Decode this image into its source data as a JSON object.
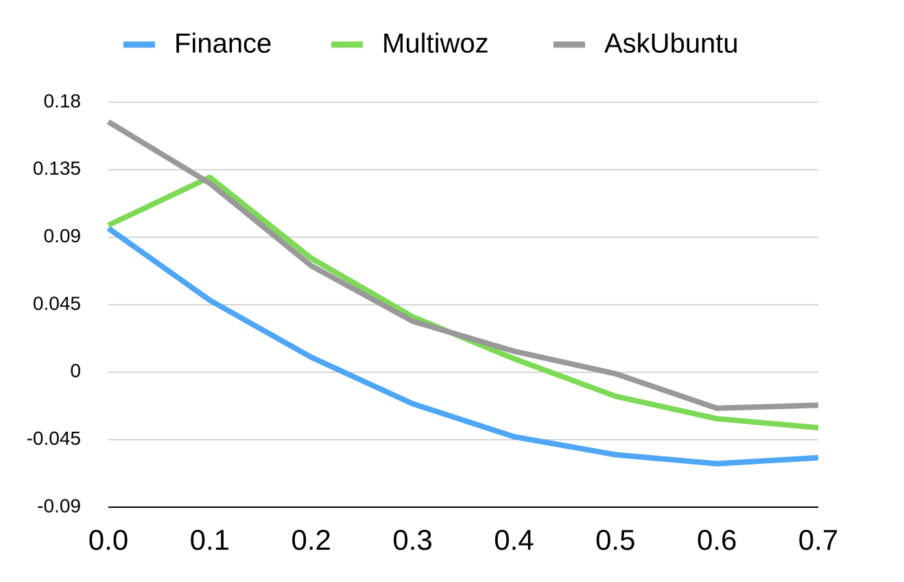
{
  "chart_data": {
    "type": "line",
    "x": [
      0,
      0.1,
      0.2,
      0.3,
      0.4,
      0.5,
      0.6,
      0.7
    ],
    "series": [
      {
        "name": "Finance",
        "color": "#4ea6f5",
        "values": [
          0.096,
          0.048,
          0.01,
          -0.021,
          -0.043,
          -0.055,
          -0.061,
          -0.057
        ]
      },
      {
        "name": "Multiwoz",
        "color": "#7ed957",
        "values": [
          0.098,
          0.13,
          0.076,
          0.037,
          0.009,
          -0.016,
          -0.031,
          -0.037
        ]
      },
      {
        "name": "AskUbuntu",
        "color": "#999999",
        "values": [
          0.167,
          0.126,
          0.071,
          0.034,
          0.014,
          -0.001,
          -0.024,
          -0.022
        ]
      }
    ],
    "xlim": [
      0,
      0.7
    ],
    "xticks": [
      {
        "value": 0,
        "label": "0.0"
      },
      0.1,
      0.2,
      0.3,
      0.4,
      0.5,
      0.6,
      0.7
    ],
    "ylim": [
      -0.09,
      0.18
    ],
    "yticks": [
      0.18,
      0.135,
      0.09,
      0.045,
      0,
      -0.045,
      -0.09
    ],
    "grid": true,
    "legend": "top"
  }
}
